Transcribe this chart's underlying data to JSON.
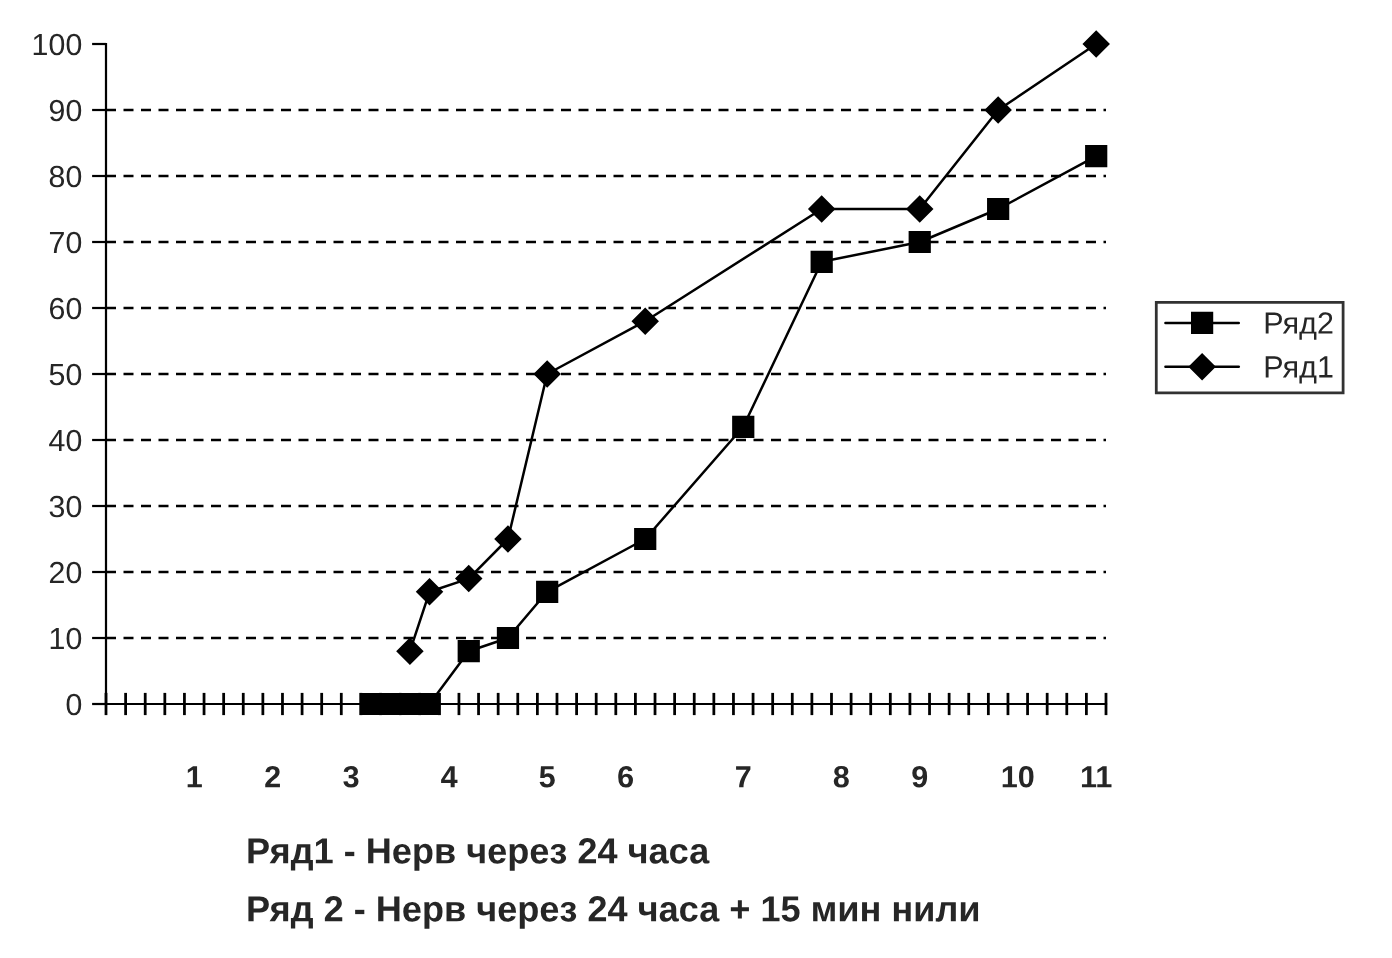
{
  "chart_data": {
    "type": "line",
    "ylim": [
      0,
      100
    ],
    "yticks": [
      0,
      10,
      20,
      30,
      40,
      50,
      60,
      70,
      80,
      90,
      100
    ],
    "categories": [
      null,
      null,
      null,
      null,
      "1",
      null,
      null,
      null,
      "2",
      null,
      null,
      null,
      "3",
      null,
      null,
      null,
      null,
      "4",
      null,
      null,
      null,
      null,
      "5",
      null,
      null,
      null,
      "6",
      null,
      null,
      null,
      null,
      null,
      "7",
      null,
      null,
      null,
      null,
      "8",
      null,
      null,
      null,
      "9",
      null,
      null,
      null,
      null,
      "10",
      null,
      null,
      null,
      "11"
    ],
    "grid": "y",
    "legend": "right",
    "line_style": "solid",
    "series": [
      {
        "name": "Ряд2",
        "color": "#000000",
        "marker": "square",
        "values": [
          null,
          null,
          null,
          null,
          null,
          null,
          null,
          null,
          null,
          null,
          null,
          null,
          null,
          0,
          0,
          0,
          0,
          null,
          8,
          null,
          10,
          null,
          17,
          null,
          null,
          null,
          null,
          25,
          null,
          null,
          null,
          null,
          42,
          null,
          null,
          null,
          67,
          null,
          null,
          null,
          null,
          70,
          null,
          null,
          null,
          75,
          null,
          null,
          null,
          null,
          83
        ]
      },
      {
        "name": "Ряд1",
        "color": "#000000",
        "marker": "diamond",
        "values": [
          null,
          null,
          null,
          null,
          null,
          null,
          null,
          null,
          null,
          null,
          null,
          null,
          null,
          null,
          null,
          8,
          17,
          null,
          19,
          null,
          25,
          null,
          50,
          null,
          null,
          null,
          null,
          58,
          null,
          null,
          null,
          null,
          null,
          null,
          null,
          null,
          75,
          null,
          null,
          null,
          null,
          75,
          null,
          null,
          null,
          90,
          null,
          null,
          null,
          null,
          100
        ]
      }
    ],
    "annotations": [
      "Ряд1 - Нерв через 24 часа",
      "Ряд 2 - Нерв через 24 часа + 15 мин нили"
    ]
  }
}
